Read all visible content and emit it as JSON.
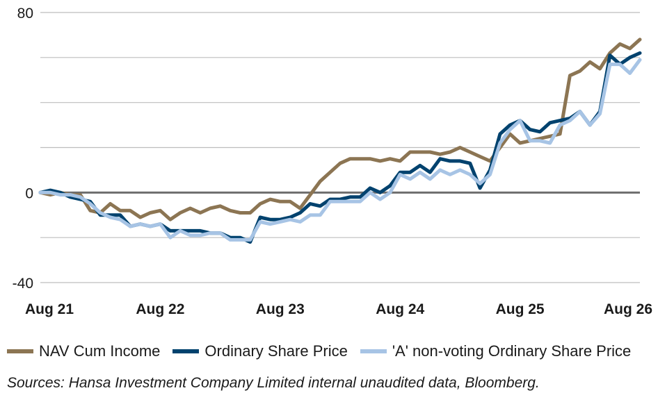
{
  "chart_data": {
    "type": "line",
    "title": "",
    "xlabel": "",
    "ylabel": "",
    "ylim": [
      -40,
      80
    ],
    "yticks": [
      80,
      0,
      -40
    ],
    "gridlines": [
      -40,
      -20,
      0,
      20,
      40,
      60,
      80
    ],
    "grid": true,
    "legend_position": "bottom",
    "x_tick_labels": [
      "Aug 21",
      "Aug 22",
      "Aug 23",
      "Aug 24",
      "Aug 25",
      "Aug 26"
    ],
    "x_tick_positions": [
      0,
      12,
      24,
      36,
      48,
      60
    ],
    "x": [
      0,
      1,
      2,
      3,
      4,
      5,
      6,
      7,
      8,
      9,
      10,
      11,
      12,
      13,
      14,
      15,
      16,
      17,
      18,
      19,
      20,
      21,
      22,
      23,
      24,
      25,
      26,
      27,
      28,
      29,
      30,
      31,
      32,
      33,
      34,
      35,
      36,
      37,
      38,
      39,
      40,
      41,
      42,
      43,
      44,
      45,
      46,
      47,
      48,
      49,
      50,
      51,
      52,
      53,
      54,
      55,
      56,
      57,
      58,
      59,
      60
    ],
    "series": [
      {
        "name": "NAV Cum Income",
        "color": "#8c7553",
        "values": [
          0,
          -1,
          0,
          -1,
          -1,
          -8,
          -9,
          -5,
          -8,
          -8,
          -11,
          -9,
          -8,
          -12,
          -9,
          -7,
          -9,
          -7,
          -6,
          -8,
          -9,
          -9,
          -5,
          -3,
          -4,
          -4,
          -7,
          -1,
          5,
          9,
          13,
          15,
          15,
          15,
          14,
          15,
          14,
          18,
          18,
          18,
          17,
          18,
          20,
          18,
          16,
          14,
          20,
          26,
          22,
          23,
          24,
          25,
          26,
          52,
          54,
          58,
          55,
          62,
          66,
          64,
          68
        ]
      },
      {
        "name": "Ordinary Share Price",
        "color": "#00426e",
        "values": [
          0,
          1,
          0,
          -2,
          -3,
          -4,
          -10,
          -10,
          -10,
          -15,
          -14,
          -15,
          -14,
          -17,
          -17,
          -17,
          -17,
          -18,
          -18,
          -20,
          -20,
          -22,
          -11,
          -12,
          -12,
          -11,
          -9,
          -5,
          -6,
          -3,
          -3,
          -2,
          -2,
          2,
          0,
          3,
          9,
          9,
          12,
          9,
          15,
          14,
          14,
          13,
          2,
          10,
          26,
          30,
          32,
          28,
          27,
          31,
          32,
          33,
          36,
          30,
          36,
          61,
          57,
          60,
          62
        ]
      },
      {
        "name": "'A' non-voting Ordinary Share Price",
        "color": "#a7c4e5",
        "values": [
          0,
          0,
          -1,
          -1,
          -2,
          -5,
          -9,
          -11,
          -12,
          -15,
          -14,
          -15,
          -14,
          -20,
          -17,
          -19,
          -19,
          -18,
          -18,
          -21,
          -21,
          -21,
          -13,
          -14,
          -13,
          -12,
          -13,
          -10,
          -10,
          -4,
          -4,
          -4,
          -4,
          0,
          -3,
          0,
          8,
          6,
          9,
          6,
          10,
          8,
          10,
          8,
          4,
          8,
          22,
          28,
          32,
          23,
          23,
          22,
          30,
          32,
          36,
          30,
          35,
          57,
          57,
          53,
          59
        ]
      }
    ]
  },
  "source_note": "Sources: Hansa Investment Company Limited internal unaudited data, Bloomberg."
}
